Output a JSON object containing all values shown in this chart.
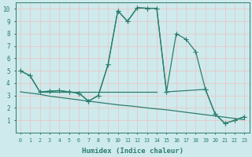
{
  "xlabel": "Humidex (Indice chaleur)",
  "bg_color": "#ceeaec",
  "grid_color": "#e8c8c8",
  "line_color": "#2e7d6e",
  "xlim": [
    -0.5,
    23.5
  ],
  "ylim": [
    0,
    10.5
  ],
  "xticks": [
    0,
    1,
    2,
    3,
    4,
    5,
    6,
    7,
    8,
    9,
    10,
    11,
    12,
    13,
    14,
    15,
    16,
    17,
    18,
    19,
    20,
    21,
    22,
    23
  ],
  "yticks": [
    1,
    2,
    3,
    4,
    5,
    6,
    7,
    8,
    9,
    10
  ],
  "line1_x": [
    0,
    1,
    2,
    3,
    4,
    5,
    6,
    7,
    8,
    9,
    10,
    11,
    12,
    13,
    14,
    15,
    16,
    17,
    18,
    19,
    20,
    21,
    22,
    23
  ],
  "line1_y": [
    5.0,
    4.6,
    3.3,
    3.35,
    3.4,
    3.3,
    3.2,
    2.55,
    3.0,
    5.5,
    9.85,
    9.0,
    10.1,
    10.05,
    10.05,
    3.3,
    8.0,
    7.55,
    6.55,
    3.5,
    1.5,
    0.75,
    1.0,
    1.3
  ],
  "line2_x": [
    2,
    14
  ],
  "line2_y": [
    3.3,
    3.3
  ],
  "line3_x": [
    0,
    1,
    2,
    3,
    4,
    5,
    6,
    7,
    8,
    9,
    10,
    11,
    12,
    13,
    14,
    15,
    16,
    17,
    18,
    19,
    20,
    21,
    22,
    23
  ],
  "line3_y": [
    3.3,
    3.2,
    3.1,
    2.95,
    2.85,
    2.75,
    2.65,
    2.55,
    2.45,
    2.35,
    2.25,
    2.18,
    2.1,
    2.0,
    1.92,
    1.85,
    1.75,
    1.65,
    1.55,
    1.45,
    1.35,
    1.25,
    1.15,
    1.05
  ],
  "line4_x": [
    0,
    1,
    2,
    3,
    4,
    5,
    6,
    7,
    8,
    9,
    10,
    11,
    12,
    13,
    14,
    15,
    19,
    20,
    21,
    22,
    23
  ],
  "line4_y": [
    5.0,
    4.6,
    3.3,
    3.35,
    3.4,
    3.3,
    3.2,
    2.55,
    3.0,
    5.5,
    9.85,
    9.0,
    10.1,
    10.05,
    10.05,
    3.3,
    3.5,
    1.5,
    0.75,
    1.0,
    1.3
  ]
}
